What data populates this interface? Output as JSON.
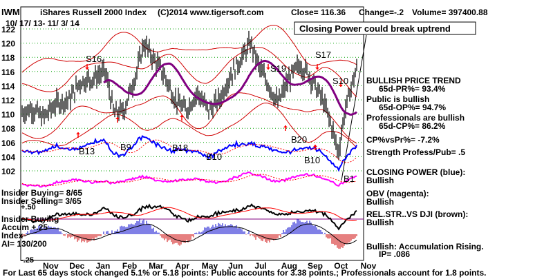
{
  "header": {
    "ticker": "IWM",
    "title": "iShares Russell 2000 Index",
    "copyright": "(C)2014 www.tigersoft.com",
    "close": "Close=  116.36",
    "change": "Change=-.2",
    "volume": "Volume= 397400.88",
    "date_range": "10/ 17/ 13-  11/ 3/ 14"
  },
  "callout": "Closing Power could break uptrend",
  "right_panel": {
    "l1": "BULLISH PRICE TREND",
    "l2": "65d-PR%= 93.4%",
    "l3": "Public is bullish",
    "l4": "65d-OP%= 94.7%",
    "l5": "Professionals are bullish",
    "l6": "65d-CP%= 86.2%",
    "l7": "CP%vsPr%= -7.2%",
    "l8": "Strength Profess/Pub= .5",
    "l9": "CLOSING POWER (blue):",
    "l10": "Bullish",
    "l11": "OBV (magenta):",
    "l12": "Bullish",
    "l13": "REL.STR..VS DJI (brown):",
    "l14": "Bullish",
    "l15": "Bullish: Accumulation Rising.",
    "l16": "IP=  .086"
  },
  "left_panel": {
    "insider_buying": "Insider Buying= 8/65",
    "insider_selling": "Insider Selling= 3/65",
    "plus50": "+.50",
    "accum1": "Insider Buying",
    "accum2": "Accum  +.25",
    "accum3": "Index",
    "accum4": "AI= 130/200",
    "minus25": "-.25"
  },
  "footer": "For Last 65 days stock changed  5.1% or  5.18 points:  Public accounts for  3.38 points.;  Professionals account for  1.8 points.",
  "signals": {
    "s16": "S16",
    "s19": "S19",
    "s17": "S17",
    "s10": "S10",
    "b13": "B13",
    "b9": "B9",
    "b18": "B18",
    "b10a": "B10",
    "b20": "B20",
    "b10b": "B10",
    "b1": "B1"
  },
  "chart_data": {
    "type": "line",
    "price_axis": {
      "ticks": [
        "122",
        "120",
        "118",
        "116",
        "114",
        "112",
        "110",
        "108",
        "106",
        "104",
        "102"
      ],
      "ylim": [
        101,
        123
      ]
    },
    "months": [
      "Nov",
      "Dec",
      "Jan",
      "Feb",
      "Mar",
      "Apr",
      "May",
      "Jun",
      "Jul",
      "Aug",
      "Sep",
      "Oct",
      "Nov"
    ],
    "price_anchor_points": [
      [
        "10/17/13",
        110.2
      ],
      [
        "10/28/13",
        110.8
      ],
      [
        "11/10/13",
        109.5
      ],
      [
        "11/25/13",
        111.5
      ],
      [
        "12/10/13",
        112.0
      ],
      [
        "12/22/13",
        114.5
      ],
      [
        "1/5/14",
        115.0
      ],
      [
        "1/20/14",
        116.0
      ],
      [
        "1/30/14",
        110.0
      ],
      [
        "2/10/14",
        110.5
      ],
      [
        "2/25/14",
        116.0
      ],
      [
        "3/5/14",
        120.0
      ],
      [
        "3/15/14",
        118.0
      ],
      [
        "3/28/14",
        115.5
      ],
      [
        "4/10/14",
        112.0
      ],
      [
        "4/22/14",
        110.5
      ],
      [
        "5/5/14",
        113.0
      ],
      [
        "5/18/14",
        110.5
      ],
      [
        "5/30/14",
        112.0
      ],
      [
        "6/10/14",
        115.0
      ],
      [
        "6/25/14",
        118.0
      ],
      [
        "7/5/14",
        120.0
      ],
      [
        "7/15/14",
        116.5
      ],
      [
        "7/28/14",
        113.5
      ],
      [
        "8/5/14",
        111.5
      ],
      [
        "8/18/14",
        115.0
      ],
      [
        "8/30/14",
        117.0
      ],
      [
        "9/10/14",
        115.5
      ],
      [
        "9/25/14",
        112.0
      ],
      [
        "10/5/14",
        108.5
      ],
      [
        "10/13/14",
        104.5
      ],
      [
        "10/20/14",
        110.0
      ],
      [
        "10/28/14",
        114.0
      ],
      [
        "11/3/14",
        116.36
      ]
    ],
    "series": [
      {
        "name": "CLOSING POWER (blue)",
        "color": "#0000ff"
      },
      {
        "name": "OBV (magenta)",
        "color": "#ff00ff"
      },
      {
        "name": "REL.STR..VS DJI (brown)",
        "color": "#000000"
      }
    ],
    "grid": true,
    "legend": "right"
  }
}
